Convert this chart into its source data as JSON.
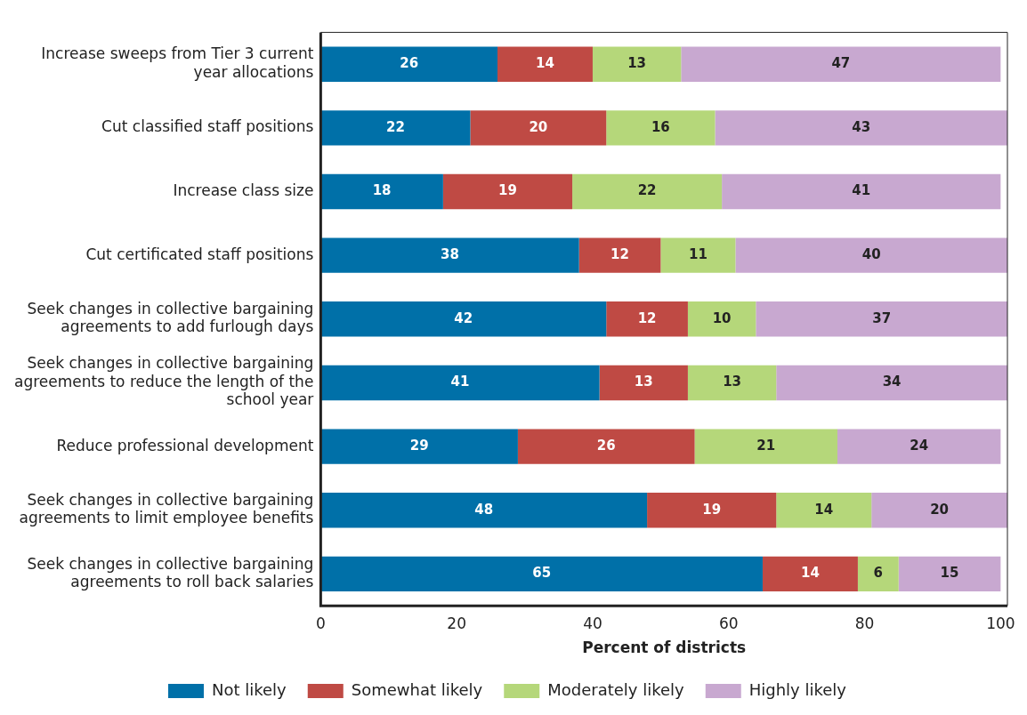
{
  "chart_data": {
    "type": "bar",
    "orientation": "horizontal",
    "stacked": true,
    "xlabel": "Percent of districts",
    "categories": [
      "Increase sweeps from Tier 3 current year allocations",
      "Cut classified staff positions",
      "Increase class size",
      "Cut certificated staff positions",
      "Seek changes in collective bargaining agreements to add furlough days",
      "Seek changes in collective bargaining agreements to reduce the length of the school year",
      "Reduce professional development",
      "Seek changes in collective bargaining agreements to limit employee benefits",
      "Seek changes in collective bargaining agreements to roll back salaries"
    ],
    "series": [
      {
        "name": "Not likely",
        "color": "#0070a8",
        "values": [
          26,
          22,
          18,
          38,
          42,
          41,
          29,
          48,
          65
        ]
      },
      {
        "name": "Somewhat likely",
        "color": "#bf4a44",
        "values": [
          14,
          20,
          19,
          12,
          12,
          13,
          26,
          19,
          14
        ]
      },
      {
        "name": "Moderately likely",
        "color": "#b5d77a",
        "values": [
          13,
          16,
          22,
          11,
          10,
          13,
          21,
          14,
          6
        ]
      },
      {
        "name": "Highly likely",
        "color": "#c8a8d0",
        "values": [
          47,
          43,
          41,
          40,
          37,
          34,
          24,
          20,
          15
        ]
      }
    ],
    "xlim": [
      0,
      101
    ],
    "xticks": [
      0,
      20,
      40,
      60,
      80,
      100
    ],
    "grid": false,
    "legend": "bottom",
    "data_labels": true
  }
}
